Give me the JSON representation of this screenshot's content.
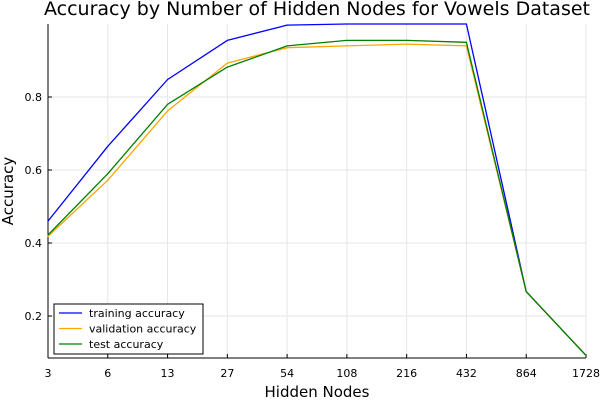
{
  "chart_data": {
    "type": "line",
    "title": "Accuracy by Number of Hidden Nodes for Vowels Dataset",
    "xlabel": "Hidden Nodes",
    "ylabel": "Accuracy",
    "categories": [
      "3",
      "6",
      "13",
      "27",
      "54",
      "108",
      "216",
      "432",
      "864",
      "1728"
    ],
    "y_ticks": [
      "0.2",
      "0.4",
      "0.6",
      "0.8"
    ],
    "ylim": [
      0.085,
      1.0
    ],
    "grid": true,
    "legend_position": "bottom-left",
    "series": [
      {
        "name": "training accuracy",
        "color": "#0000ff",
        "values": [
          0.46,
          0.665,
          0.848,
          0.955,
          0.997,
          1.0,
          1.0,
          1.0,
          0.267,
          0.092
        ]
      },
      {
        "name": "validation accuracy",
        "color": "#ffa500",
        "values": [
          0.418,
          0.572,
          0.762,
          0.893,
          0.935,
          0.94,
          0.945,
          0.94,
          0.267,
          0.092
        ]
      },
      {
        "name": "test accuracy",
        "color": "#008000",
        "values": [
          0.422,
          0.59,
          0.78,
          0.882,
          0.94,
          0.955,
          0.955,
          0.95,
          0.267,
          0.092
        ]
      }
    ]
  }
}
